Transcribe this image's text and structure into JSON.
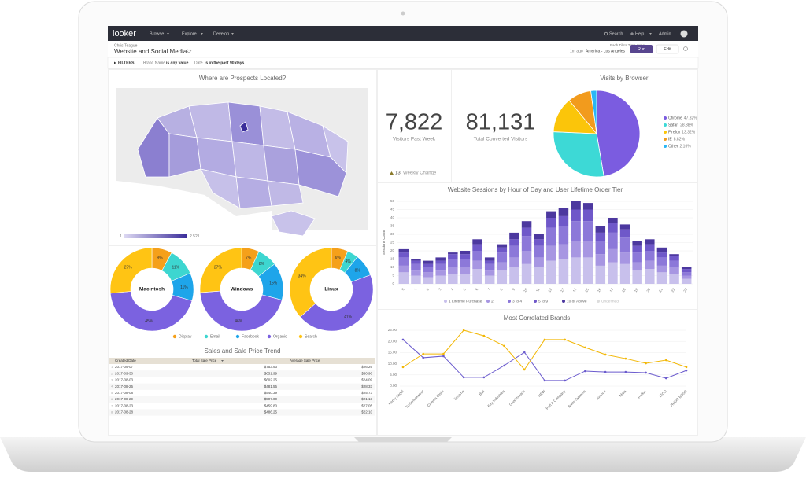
{
  "app": {
    "nav": {
      "logo": "looker",
      "menus": [
        "Browse",
        "Explore",
        "Develop"
      ],
      "right": [
        "Search",
        "Help",
        "Admin"
      ]
    },
    "header": {
      "owner": "Chris Teague",
      "title": "Website and Social Media",
      "time_zone_note": "Each Tile's Time Zone",
      "updated": "1m ago",
      "time_zone": "America - Los Angeles",
      "buttons": [
        "Run",
        "Edit"
      ]
    },
    "filters": {
      "label": "FILTERS",
      "items": [
        {
          "field": "Brand Name",
          "condition": "is any value"
        },
        {
          "field": "Date",
          "condition": "is in the past 90 days"
        }
      ]
    }
  },
  "map": {
    "title": "Where are Prospects Located?",
    "legend_min": "1",
    "legend_max": "2 521"
  },
  "single_values": [
    {
      "value": "7,822",
      "label": "Visitors Past Week",
      "change": "13",
      "change_label": "Weekly Change"
    },
    {
      "value": "81,131",
      "label": "Total Converted Visitors"
    }
  ],
  "table": {
    "title": "Sales and Sale Price Trend",
    "columns": [
      "Created Date",
      "Total Sale Price",
      "Average Sale Price"
    ],
    "rows": [
      [
        "1",
        "2017-09-07",
        "$753.93",
        "$26.26"
      ],
      [
        "2",
        "2017-09-30",
        "$651.99",
        "$30.90"
      ],
      [
        "3",
        "2017-08-03",
        "$602.25",
        "$24.09"
      ],
      [
        "4",
        "2017-08-25",
        "$481.55",
        "$28.33"
      ],
      [
        "5",
        "2017-08-08",
        "$540.39",
        "$25.73"
      ],
      [
        "6",
        "2017-08-29",
        "$507.00",
        "$21.13"
      ],
      [
        "7",
        "2017-08-23",
        "$459.80",
        "$27.05"
      ],
      [
        "8",
        "2017-08-28",
        "$486.25",
        "$22.10"
      ]
    ]
  },
  "chart_data": [
    {
      "type": "donut",
      "center_label": "Macintosh",
      "categories": [
        "Display",
        "Email",
        "Facebook",
        "Organic",
        "Search"
      ],
      "values": [
        8,
        11,
        11,
        45,
        27
      ],
      "value_labels": [
        "8%",
        "11%",
        "11%",
        "45%",
        "27%"
      ],
      "colors": [
        "#f5a01a",
        "#3dd6d0",
        "#1ea5ea",
        "#7b62e0",
        "#ffc414"
      ]
    },
    {
      "type": "donut",
      "center_label": "Windows",
      "categories": [
        "Display",
        "Email",
        "Facebook",
        "Organic",
        "Search"
      ],
      "values": [
        7,
        8,
        15,
        46,
        27
      ],
      "value_labels": [
        "7%",
        "8%",
        "15%",
        "46%",
        "27%"
      ],
      "colors": [
        "#f5a01a",
        "#3dd6d0",
        "#1ea5ea",
        "#7b62e0",
        "#ffc414"
      ]
    },
    {
      "type": "donut",
      "center_label": "Linux",
      "categories": [
        "Display",
        "Email",
        "Facebook",
        "Organic",
        "Search"
      ],
      "values": [
        6,
        4,
        8,
        41,
        34
      ],
      "value_labels": [
        "6%",
        "4%",
        "8%",
        "41%",
        "34%"
      ],
      "colors": [
        "#f5a01a",
        "#3dd6d0",
        "#1ea5ea",
        "#7b62e0",
        "#ffc414"
      ]
    },
    {
      "type": "pie",
      "title": "Visits by Browser",
      "categories": [
        "Chrome",
        "Safari",
        "Firefox",
        "IE",
        "Other"
      ],
      "values": [
        47.32,
        28.38,
        13.32,
        8.82,
        2.16
      ],
      "value_labels": [
        "47.32%",
        "28.38%",
        "13.32%",
        "8.82%",
        "2.16%"
      ],
      "colors": [
        "#7b5ce0",
        "#3dd9d6",
        "#fbc50a",
        "#f29b1d",
        "#29b6f6"
      ]
    },
    {
      "type": "stacked_bar",
      "title": "Website Sessions by Hour of Day and User Lifetime Order Tier",
      "y_label": "Sessions Count",
      "grid": true,
      "categories": [
        "0",
        "1",
        "2",
        "3",
        "4",
        "5",
        "6",
        "7",
        "8",
        "9",
        "10",
        "11",
        "12",
        "13",
        "14",
        "15",
        "16",
        "17",
        "18",
        "19",
        "20",
        "21",
        "22",
        "23"
      ],
      "ylim": [
        0,
        50
      ],
      "yticks": [
        0,
        5,
        10,
        15,
        20,
        25,
        30,
        35,
        40,
        45,
        50
      ],
      "series": [
        {
          "name": "1 Lifetime Purchase",
          "color": "#c8c0ec",
          "values": [
            7,
            5,
            4,
            5,
            6,
            6,
            9,
            5,
            8,
            10,
            12,
            10,
            14,
            15,
            16,
            16,
            11,
            13,
            12,
            8,
            9,
            7,
            6,
            3
          ]
        },
        {
          "name": "2",
          "color": "#a796e2",
          "values": [
            4,
            3,
            3,
            3,
            4,
            4,
            5,
            3,
            5,
            6,
            8,
            6,
            9,
            9,
            10,
            10,
            7,
            8,
            7,
            5,
            5,
            4,
            4,
            2
          ]
        },
        {
          "name": "3 to 4",
          "color": "#8c78d9",
          "values": [
            5,
            4,
            3,
            4,
            5,
            5,
            6,
            4,
            6,
            7,
            9,
            7,
            11,
            11,
            12,
            12,
            8,
            10,
            9,
            6,
            6,
            5,
            4,
            2
          ]
        },
        {
          "name": "5 to 9",
          "color": "#6f58c9",
          "values": [
            3,
            2,
            2,
            2,
            3,
            3,
            4,
            2,
            3,
            4,
            5,
            4,
            6,
            6,
            7,
            7,
            5,
            6,
            5,
            4,
            4,
            3,
            3,
            2
          ]
        },
        {
          "name": "10 or Above",
          "color": "#4c389f",
          "values": [
            2,
            1,
            2,
            2,
            1,
            2,
            3,
            2,
            2,
            4,
            4,
            3,
            4,
            5,
            5,
            4,
            4,
            3,
            3,
            3,
            3,
            3,
            1,
            1
          ]
        },
        {
          "name": "Undefined",
          "color": "#dddddd",
          "values": [
            0,
            0,
            0,
            0,
            0,
            0,
            0,
            0,
            0,
            0,
            0,
            0,
            0,
            0,
            0,
            0,
            0,
            0,
            0,
            0,
            0,
            0,
            0,
            0
          ]
        }
      ]
    },
    {
      "type": "line",
      "title": "Most Correlated Brands",
      "grid": true,
      "categories": [
        "Henry Segal",
        "Turtleneckwear",
        "Cinema Etoile",
        "Sesame",
        "Bali",
        "Key Industries",
        "Goodthreads",
        "NEW",
        "Port & Company",
        "Swim Systems",
        "Avenue",
        "Mata",
        "Parker",
        "IZOD",
        "HUGO BOSS"
      ],
      "ylim": [
        0,
        25
      ],
      "yticks": [
        {
          "value": 0,
          "label": "0.00"
        },
        {
          "value": 5,
          "label": "5.00"
        },
        {
          "value": 10,
          "label": "10.00"
        },
        {
          "value": 15,
          "label": "15.00"
        },
        {
          "value": 20,
          "label": "20.00"
        },
        {
          "value": 25,
          "label": "25.00"
        }
      ],
      "series": [
        {
          "color": "#6a5acd",
          "values": [
            20.8,
            12.7,
            13.4,
            3.9,
            3.9,
            9.2,
            15.1,
            2.5,
            2.5,
            6.7,
            6.3,
            6.3,
            6.0,
            3.5,
            7.0
          ]
        },
        {
          "color": "#f2b705",
          "values": [
            8.5,
            14.4,
            14.4,
            25,
            22.5,
            18,
            7.4,
            20.8,
            20.8,
            17.3,
            14.1,
            12.3,
            10.2,
            11.6,
            8.5
          ]
        }
      ]
    }
  ]
}
